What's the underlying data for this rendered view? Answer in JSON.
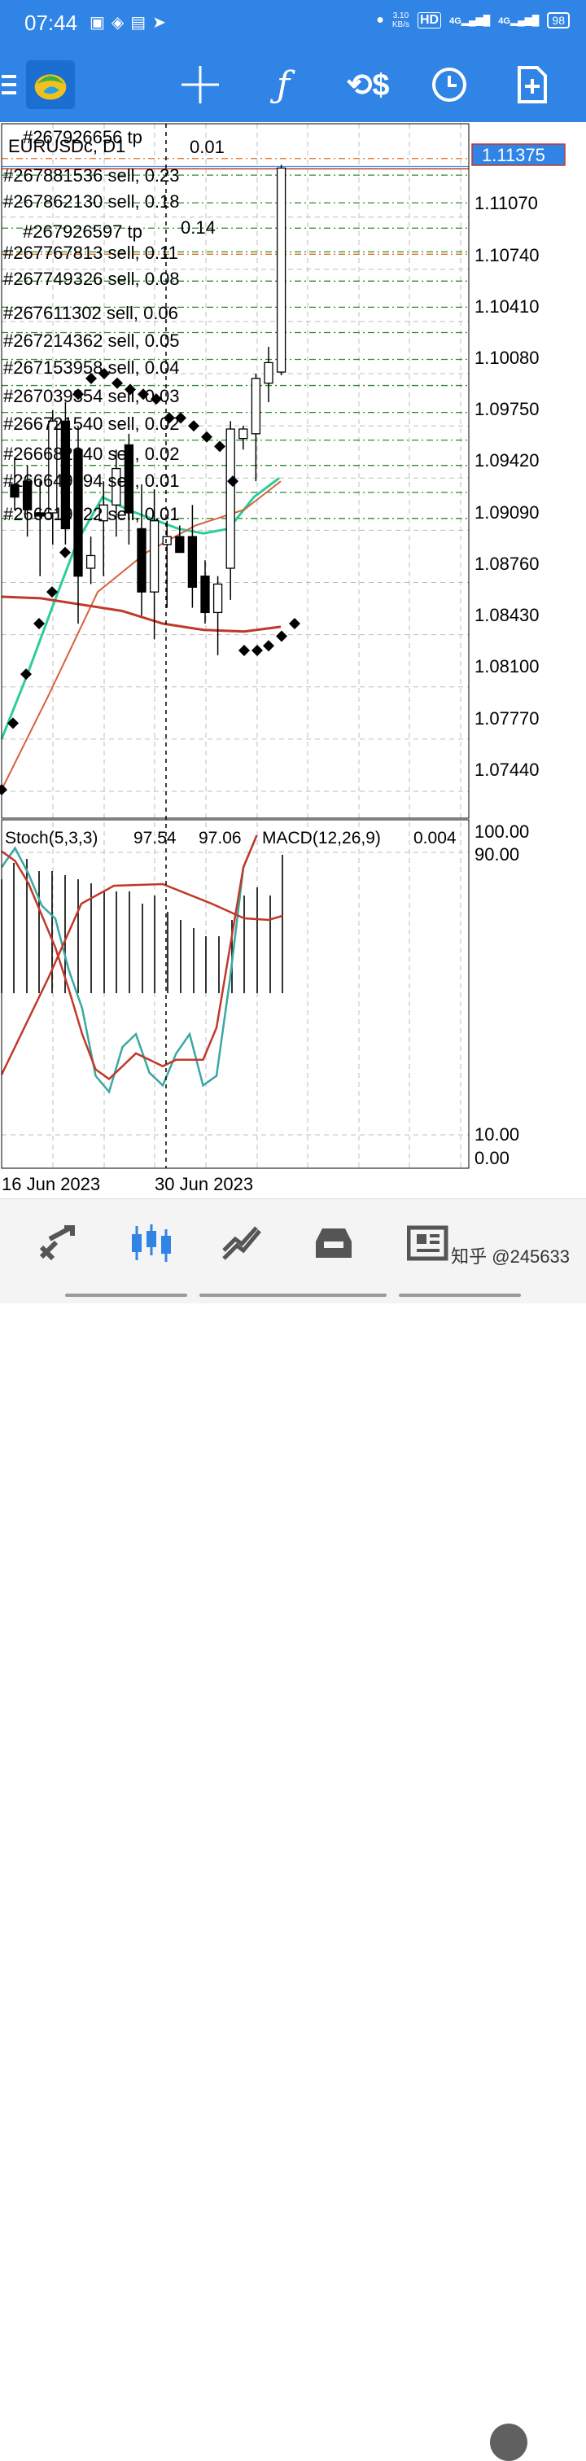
{
  "status_bar": {
    "time": "07:44",
    "net_speed_value": "3.10",
    "net_speed_unit": "KB/s",
    "hd_label": "HD",
    "signal1_label": "4G",
    "signal2_label": "4G",
    "battery": "98"
  },
  "toolbar": {
    "icons": [
      "menu-icon",
      "metatrader-logo",
      "crosshair-icon",
      "indicators-icon",
      "objects-icon",
      "timeframe-icon",
      "new-order-icon"
    ]
  },
  "chart": {
    "symbol_label": "EURUSDc, D1",
    "current_price": "1.11375",
    "price_ticks": [
      "1.11070",
      "1.10740",
      "1.10410",
      "1.10080",
      "1.09750",
      "1.09420",
      "1.09090",
      "1.08760",
      "1.08430",
      "1.08100",
      "1.07770",
      "1.07440"
    ],
    "order_labels": [
      "#267926656  tp",
      "0.01",
      "#267881536  sell,  0.23",
      "#267862130  sell,  0.18",
      "#267926597  tp",
      "0.14",
      "#267767813  sell,  0.11",
      "#267749326  sell,  0.08",
      "#267611302  sell,  0.06",
      "#267214362  sell,  0.05",
      "#267153958  sell,  0.04",
      "#267039354  sell,  0.03",
      "#266721540  sell,  0.02",
      "#266682340  sell,  0.02",
      "#266649394  sell,  0.01",
      "#266619922  sell,  0.01"
    ],
    "oscillator": {
      "title": "Stoch(5,3,3)",
      "value1": "97.54",
      "value2": "97.06",
      "macd_title": "MACD(12,26,9)",
      "macd_value": "0.004",
      "ticks": [
        "100.00",
        "90.00",
        "10.00",
        "0.00"
      ]
    },
    "date_labels": [
      "16 Jun 2023",
      "30 Jun 2023"
    ],
    "colors": {
      "fast_ma": "#2ecc9a",
      "slow_ma": "#c0392b",
      "mid_ma": "#d9603b",
      "order_line": "#2e8b2e",
      "tp_line": "#e07020",
      "price_box": "#2f84e6",
      "crosshair": "#000000"
    }
  },
  "chart_data": {
    "type": "candlestick",
    "title": "EURUSDc, D1",
    "ylim": [
      1.0727,
      1.1166
    ],
    "candles": [
      {
        "o": 1.0938,
        "h": 1.0955,
        "l": 1.0922,
        "c": 1.093
      },
      {
        "o": 1.094,
        "h": 1.095,
        "l": 1.0905,
        "c": 1.0922
      },
      {
        "o": 1.092,
        "h": 1.094,
        "l": 1.088,
        "c": 1.0918
      },
      {
        "o": 1.092,
        "h": 1.0985,
        "l": 1.09,
        "c": 1.0978
      },
      {
        "o": 1.0978,
        "h": 1.099,
        "l": 1.09,
        "c": 1.091
      },
      {
        "o": 1.096,
        "h": 1.0975,
        "l": 1.085,
        "c": 1.088
      },
      {
        "o": 1.0885,
        "h": 1.0905,
        "l": 1.0875,
        "c": 1.0893
      },
      {
        "o": 1.0915,
        "h": 1.094,
        "l": 1.088,
        "c": 1.0925
      },
      {
        "o": 1.0925,
        "h": 1.096,
        "l": 1.0905,
        "c": 1.0948
      },
      {
        "o": 1.0963,
        "h": 1.097,
        "l": 1.09,
        "c": 1.092
      },
      {
        "o": 1.091,
        "h": 1.0938,
        "l": 1.0855,
        "c": 1.087
      },
      {
        "o": 1.087,
        "h": 1.0935,
        "l": 1.084,
        "c": 1.0915
      },
      {
        "o": 1.09,
        "h": 1.0915,
        "l": 1.086,
        "c": 1.0905
      },
      {
        "o": 1.0905,
        "h": 1.0912,
        "l": 1.0895,
        "c": 1.0895
      },
      {
        "o": 1.0905,
        "h": 1.0925,
        "l": 1.086,
        "c": 1.0873
      },
      {
        "o": 1.088,
        "h": 1.089,
        "l": 1.085,
        "c": 1.0857
      },
      {
        "o": 1.0857,
        "h": 1.088,
        "l": 1.083,
        "c": 1.0875
      },
      {
        "o": 1.0885,
        "h": 1.0978,
        "l": 1.0865,
        "c": 1.0973
      },
      {
        "o": 1.0967,
        "h": 1.0975,
        "l": 1.096,
        "c": 1.0973
      },
      {
        "o": 1.097,
        "h": 1.1008,
        "l": 1.094,
        "c": 1.1005
      },
      {
        "o": 1.1002,
        "h": 1.1025,
        "l": 1.099,
        "c": 1.1015
      },
      {
        "o": 1.1009,
        "h": 1.114,
        "l": 1.1007,
        "c": 1.1138
      }
    ],
    "order_levels": [
      1.11375,
      1.11335,
      1.1116,
      1.11,
      1.1085,
      1.10665,
      1.105,
      1.1034,
      1.1017,
      1.10005,
      1.09835,
      1.0966,
      1.095,
      1.0933,
      1.09165
    ],
    "tp_levels": [
      1.1144,
      1.10835
    ],
    "ma_fast": [
      1.0777,
      1.0817,
      1.086,
      1.0902,
      1.093,
      1.0922,
      1.0916,
      1.091,
      1.0907,
      1.091,
      1.093,
      1.0942
    ],
    "ma_slow_level": [
      1.0867,
      1.0866,
      1.0862,
      1.0858,
      1.085,
      1.0846,
      1.0845,
      1.0848
    ],
    "sar": [
      1.0745,
      1.0787,
      1.0818,
      1.085,
      1.087,
      1.0895,
      1.0995,
      1.1005,
      1.1008,
      1.1002,
      1.0998,
      1.0995,
      1.0992,
      1.098,
      1.098,
      1.0975,
      1.0968,
      1.0962,
      1.094,
      1.0833,
      1.0833,
      1.0836,
      1.0842,
      1.085
    ],
    "stochastic": {
      "main": [
        90,
        96,
        88,
        78,
        74,
        58,
        46,
        25,
        20,
        34,
        38,
        26,
        22,
        32,
        38,
        22,
        25,
        55,
        90,
        100
      ],
      "signal": [
        95,
        92,
        85,
        75,
        65,
        52,
        38,
        27,
        24,
        28,
        32,
        30,
        28,
        30,
        30,
        30,
        40,
        65,
        90,
        100
      ]
    }
  }
}
